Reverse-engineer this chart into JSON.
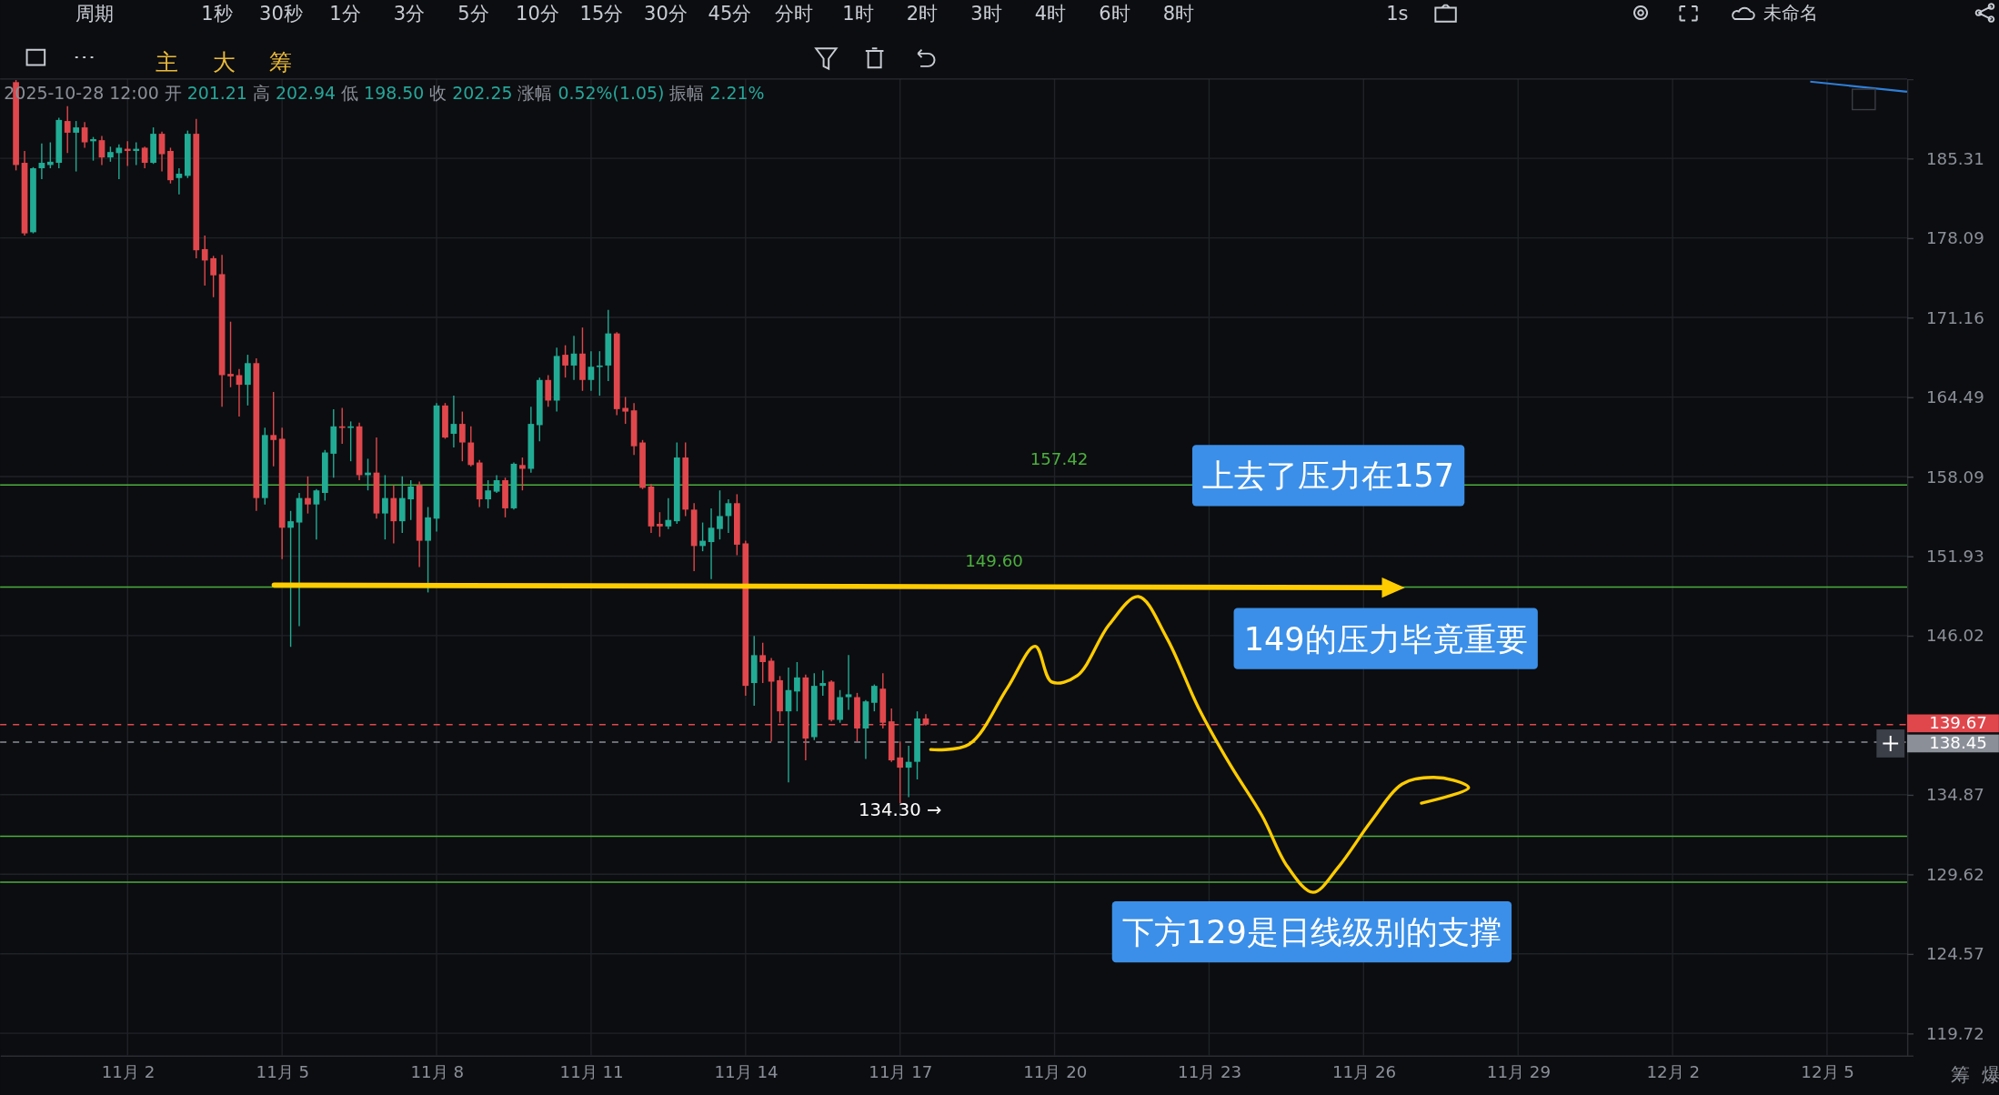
{
  "chart_data": {
    "type": "candlestick",
    "subtitle": "2025-10-28 12:00 开 201.21 高 202.94 低 198.50 收 202.25 涨幅 0.52%(1.05) 振幅 2.21%",
    "x": [
      "2025-10-30T20:00",
      "2025-10-31T00:00",
      "2025-10-31T04:00",
      "2025-10-31T08:00",
      "2025-10-31T12:00",
      "2025-10-31T16:00",
      "2025-10-31T20:00",
      "2025-11-01T00:00",
      "2025-11-01T04:00",
      "2025-11-01T08:00",
      "2025-11-01T12:00",
      "2025-11-01T16:00",
      "2025-11-01T20:00",
      "2025-11-02T00:00",
      "2025-11-02T04:00",
      "2025-11-02T08:00",
      "2025-11-02T12:00",
      "2025-11-02T16:00",
      "2025-11-02T20:00",
      "2025-11-03T00:00",
      "2025-11-03T04:00",
      "2025-11-03T08:00",
      "2025-11-03T12:00",
      "2025-11-03T16:00",
      "2025-11-03T20:00",
      "2025-11-04T00:00",
      "2025-11-04T04:00",
      "2025-11-04T08:00",
      "2025-11-04T12:00",
      "2025-11-04T16:00",
      "2025-11-04T20:00",
      "2025-11-05T00:00",
      "2025-11-05T04:00",
      "2025-11-05T08:00",
      "2025-11-05T12:00",
      "2025-11-05T16:00",
      "2025-11-05T20:00",
      "2025-11-06T00:00",
      "2025-11-06T04:00",
      "2025-11-06T08:00",
      "2025-11-06T12:00",
      "2025-11-06T16:00",
      "2025-11-06T20:00",
      "2025-11-07T00:00",
      "2025-11-07T04:00",
      "2025-11-07T08:00",
      "2025-11-07T12:00",
      "2025-11-07T16:00",
      "2025-11-07T20:00",
      "2025-11-08T00:00",
      "2025-11-08T04:00",
      "2025-11-08T08:00",
      "2025-11-08T12:00",
      "2025-11-08T16:00",
      "2025-11-08T20:00",
      "2025-11-09T00:00",
      "2025-11-09T04:00",
      "2025-11-09T08:00",
      "2025-11-09T12:00",
      "2025-11-09T16:00",
      "2025-11-09T20:00",
      "2025-11-10T00:00",
      "2025-11-10T04:00",
      "2025-11-10T08:00",
      "2025-11-10T12:00",
      "2025-11-10T16:00",
      "2025-11-10T20:00",
      "2025-11-11T00:00",
      "2025-11-11T04:00",
      "2025-11-11T08:00",
      "2025-11-11T12:00",
      "2025-11-11T16:00",
      "2025-11-11T20:00",
      "2025-11-12T00:00",
      "2025-11-12T04:00",
      "2025-11-12T08:00",
      "2025-11-12T12:00",
      "2025-11-12T16:00",
      "2025-11-12T20:00",
      "2025-11-13T00:00",
      "2025-11-13T04:00",
      "2025-11-13T08:00",
      "2025-11-13T12:00",
      "2025-11-13T16:00",
      "2025-11-13T20:00",
      "2025-11-14T00:00",
      "2025-11-14T04:00",
      "2025-11-14T08:00",
      "2025-11-14T12:00",
      "2025-11-14T16:00",
      "2025-11-14T20:00",
      "2025-11-15T00:00",
      "2025-11-15T04:00",
      "2025-11-15T08:00",
      "2025-11-15T12:00",
      "2025-11-15T16:00",
      "2025-11-15T20:00",
      "2025-11-16T00:00",
      "2025-11-16T04:00",
      "2025-11-16T08:00",
      "2025-11-16T12:00",
      "2025-11-16T16:00",
      "2025-11-16T20:00",
      "2025-11-17T00:00",
      "2025-11-17T04:00",
      "2025-11-17T08:00",
      "2025-11-17T12:00"
    ],
    "ohlc": [
      [
        192.5,
        192.7,
        184.2,
        184.7
      ],
      [
        184.9,
        186.0,
        178.3,
        178.5
      ],
      [
        178.6,
        184.5,
        178.5,
        184.4
      ],
      [
        184.4,
        186.7,
        183.4,
        184.9
      ],
      [
        184.7,
        186.8,
        184.4,
        185.0
      ],
      [
        184.9,
        189.1,
        184.4,
        188.9
      ],
      [
        188.8,
        190.2,
        185.8,
        187.7
      ],
      [
        187.7,
        188.8,
        184.1,
        188.2
      ],
      [
        188.2,
        188.7,
        186.3,
        186.8
      ],
      [
        186.9,
        187.3,
        185.1,
        187.1
      ],
      [
        187.0,
        187.4,
        184.7,
        185.4
      ],
      [
        185.4,
        186.4,
        185.0,
        185.9
      ],
      [
        185.8,
        186.6,
        183.4,
        186.3
      ],
      [
        186.2,
        186.9,
        184.6,
        186.0
      ],
      [
        186.0,
        186.8,
        184.7,
        186.2
      ],
      [
        186.3,
        186.4,
        184.4,
        184.9
      ],
      [
        184.9,
        188.2,
        184.8,
        187.6
      ],
      [
        187.6,
        187.8,
        184.1,
        185.7
      ],
      [
        186.0,
        186.3,
        183.0,
        183.3
      ],
      [
        183.5,
        184.4,
        182.0,
        183.9
      ],
      [
        183.7,
        187.9,
        183.5,
        187.6
      ],
      [
        187.6,
        189.0,
        176.3,
        177.0
      ],
      [
        177.1,
        178.3,
        173.9,
        176.1
      ],
      [
        176.3,
        176.5,
        172.9,
        174.8
      ],
      [
        174.9,
        176.6,
        163.7,
        166.3
      ],
      [
        166.4,
        170.8,
        165.3,
        166.2
      ],
      [
        166.3,
        166.8,
        162.9,
        165.5
      ],
      [
        165.5,
        168.0,
        163.8,
        167.3
      ],
      [
        167.3,
        167.7,
        155.4,
        156.4
      ],
      [
        156.4,
        162.0,
        155.9,
        161.4
      ],
      [
        161.4,
        164.9,
        158.9,
        161.0
      ],
      [
        161.1,
        162.0,
        151.7,
        154.1
      ],
      [
        154.1,
        155.4,
        145.2,
        154.6
      ],
      [
        154.5,
        156.8,
        146.7,
        156.4
      ],
      [
        156.4,
        158.1,
        155.2,
        155.9
      ],
      [
        155.9,
        157.1,
        153.2,
        157.0
      ],
      [
        156.8,
        160.2,
        156.2,
        160.0
      ],
      [
        159.9,
        163.5,
        158.0,
        162.1
      ],
      [
        162.1,
        163.6,
        160.7,
        162.0
      ],
      [
        162.0,
        162.5,
        159.3,
        162.1
      ],
      [
        162.1,
        162.4,
        157.8,
        158.2
      ],
      [
        158.2,
        159.5,
        157.0,
        158.4
      ],
      [
        158.4,
        161.2,
        154.8,
        155.2
      ],
      [
        155.2,
        158.2,
        153.2,
        156.4
      ],
      [
        156.4,
        157.4,
        152.9,
        154.6
      ],
      [
        154.6,
        158.1,
        153.7,
        156.4
      ],
      [
        156.3,
        157.8,
        154.7,
        157.3
      ],
      [
        157.4,
        157.7,
        151.1,
        153.1
      ],
      [
        153.1,
        155.7,
        149.2,
        154.9
      ],
      [
        154.8,
        164.0,
        153.8,
        163.8
      ],
      [
        163.8,
        164.0,
        161.1,
        161.2
      ],
      [
        161.5,
        164.6,
        160.4,
        162.3
      ],
      [
        162.3,
        163.3,
        159.3,
        160.8
      ],
      [
        160.8,
        162.1,
        158.9,
        159.0
      ],
      [
        159.2,
        159.4,
        155.7,
        156.3
      ],
      [
        156.3,
        157.8,
        155.6,
        157.0
      ],
      [
        156.9,
        158.2,
        156.8,
        157.8
      ],
      [
        157.8,
        158.0,
        154.9,
        155.6
      ],
      [
        155.6,
        159.2,
        155.5,
        159.1
      ],
      [
        159.0,
        159.6,
        157.0,
        158.7
      ],
      [
        158.7,
        163.7,
        158.4,
        162.3
      ],
      [
        162.2,
        166.1,
        160.9,
        165.9
      ],
      [
        165.9,
        166.3,
        163.7,
        164.2
      ],
      [
        164.2,
        168.6,
        163.3,
        167.9
      ],
      [
        168.0,
        168.8,
        166.1,
        167.1
      ],
      [
        167.1,
        169.6,
        165.9,
        168.1
      ],
      [
        168.1,
        170.3,
        165.0,
        165.9
      ],
      [
        165.9,
        168.3,
        165.0,
        167.0
      ],
      [
        167.0,
        168.3,
        164.6,
        167.1
      ],
      [
        167.1,
        171.8,
        165.8,
        169.8
      ],
      [
        169.8,
        169.9,
        163.0,
        163.5
      ],
      [
        163.6,
        164.5,
        162.3,
        163.3
      ],
      [
        163.4,
        164.0,
        159.8,
        160.5
      ],
      [
        160.8,
        161.0,
        157.1,
        157.2
      ],
      [
        157.3,
        157.5,
        153.7,
        154.2
      ],
      [
        154.4,
        155.3,
        153.4,
        154.2
      ],
      [
        154.2,
        156.4,
        154.0,
        154.7
      ],
      [
        154.6,
        160.8,
        154.4,
        159.6
      ],
      [
        159.6,
        160.8,
        155.0,
        155.5
      ],
      [
        155.5,
        156.0,
        150.8,
        152.7
      ],
      [
        152.7,
        154.5,
        152.3,
        153.1
      ],
      [
        153.0,
        155.6,
        150.2,
        154.1
      ],
      [
        154.0,
        157.0,
        153.2,
        155.0
      ],
      [
        155.0,
        156.3,
        153.7,
        156.0
      ],
      [
        156.0,
        156.7,
        152.0,
        152.8
      ],
      [
        152.9,
        153.1,
        141.7,
        142.4
      ],
      [
        142.6,
        146.0,
        141.0,
        144.6
      ],
      [
        144.6,
        145.5,
        142.6,
        144.1
      ],
      [
        144.2,
        144.4,
        138.5,
        142.7
      ],
      [
        142.8,
        143.1,
        139.8,
        140.6
      ],
      [
        140.6,
        143.7,
        135.7,
        142.1
      ],
      [
        142.0,
        144.1,
        140.6,
        143.0
      ],
      [
        143.0,
        143.2,
        137.2,
        138.7
      ],
      [
        138.8,
        143.3,
        138.6,
        142.4
      ],
      [
        142.4,
        143.5,
        141.7,
        142.6
      ],
      [
        142.7,
        142.8,
        139.9,
        140.0
      ],
      [
        140.0,
        142.1,
        139.8,
        141.6
      ],
      [
        141.6,
        144.6,
        140.7,
        141.8
      ],
      [
        141.6,
        141.9,
        138.5,
        139.4
      ],
      [
        139.4,
        141.4,
        137.3,
        141.3
      ],
      [
        141.2,
        142.5,
        140.6,
        142.4
      ],
      [
        142.2,
        143.3,
        139.4,
        139.8
      ],
      [
        139.9,
        140.8,
        137.1,
        137.2
      ],
      [
        137.4,
        138.5,
        134.3,
        136.7
      ],
      [
        136.7,
        138.2,
        134.7,
        137.1
      ],
      [
        137.1,
        140.6,
        135.9,
        140.1
      ],
      [
        140.1,
        140.4,
        139.6,
        139.67
      ]
    ],
    "xlim": [
      "2025-10-30T12:36",
      "2025-12-06T13:18"
    ],
    "xticks": [
      {
        "value": "2025-11-02",
        "label": "11月 2"
      },
      {
        "value": "2025-11-05",
        "label": "11月 5"
      },
      {
        "value": "2025-11-08",
        "label": "11月 8"
      },
      {
        "value": "2025-11-11",
        "label": "11月 11"
      },
      {
        "value": "2025-11-14",
        "label": "11月 14"
      },
      {
        "value": "2025-11-17",
        "label": "11月 17"
      },
      {
        "value": "2025-11-20",
        "label": "11月 20"
      },
      {
        "value": "2025-11-23",
        "label": "11月 23"
      },
      {
        "value": "2025-11-26",
        "label": "11月 26"
      },
      {
        "value": "2025-11-29",
        "label": "11月 29"
      },
      {
        "value": "2025-12-02",
        "label": "12月 2"
      },
      {
        "value": "2025-12-05",
        "label": "12月 5"
      }
    ],
    "ylim": [
      118.4,
      192.8
    ],
    "yticks": [
      185.31,
      178.09,
      171.16,
      164.49,
      158.09,
      151.93,
      146.02,
      134.87,
      129.62,
      124.57,
      119.72
    ],
    "log": true,
    "grid": true,
    "ref_lines": [
      {
        "axis": "y",
        "value": 157.42,
        "label": "157.42",
        "color": "#4caf3f"
      },
      {
        "axis": "y",
        "value": 149.6,
        "label": "149.60",
        "color": "#4caf3f"
      },
      {
        "axis": "y",
        "value": 132.1,
        "color": "#4caf3f"
      },
      {
        "axis": "y",
        "value": 129.1,
        "color": "#4caf3f"
      },
      {
        "axis": "y",
        "value": 139.67,
        "label": "139.67",
        "color": "#e0474c",
        "line_style": "dashed"
      },
      {
        "axis": "y",
        "value": 138.45,
        "label": "138.45",
        "color": "#8a8f98",
        "line_style": "dashed"
      }
    ],
    "annotations": [
      "上去了压力在157",
      "149的压力毕竟重要",
      "下方129是日线级别的支撑",
      {
        "text": "134.30 →",
        "x": "2025-11-17T00:00",
        "y": 134.3
      },
      "周期 1秒 30秒 1分 3分 5分 10分 15分 30分 45分 分时 1时 2时 3时 4时 6时 8时",
      "1s 未命名",
      "主 大 筹",
      "筹 爆"
    ]
  }
}
